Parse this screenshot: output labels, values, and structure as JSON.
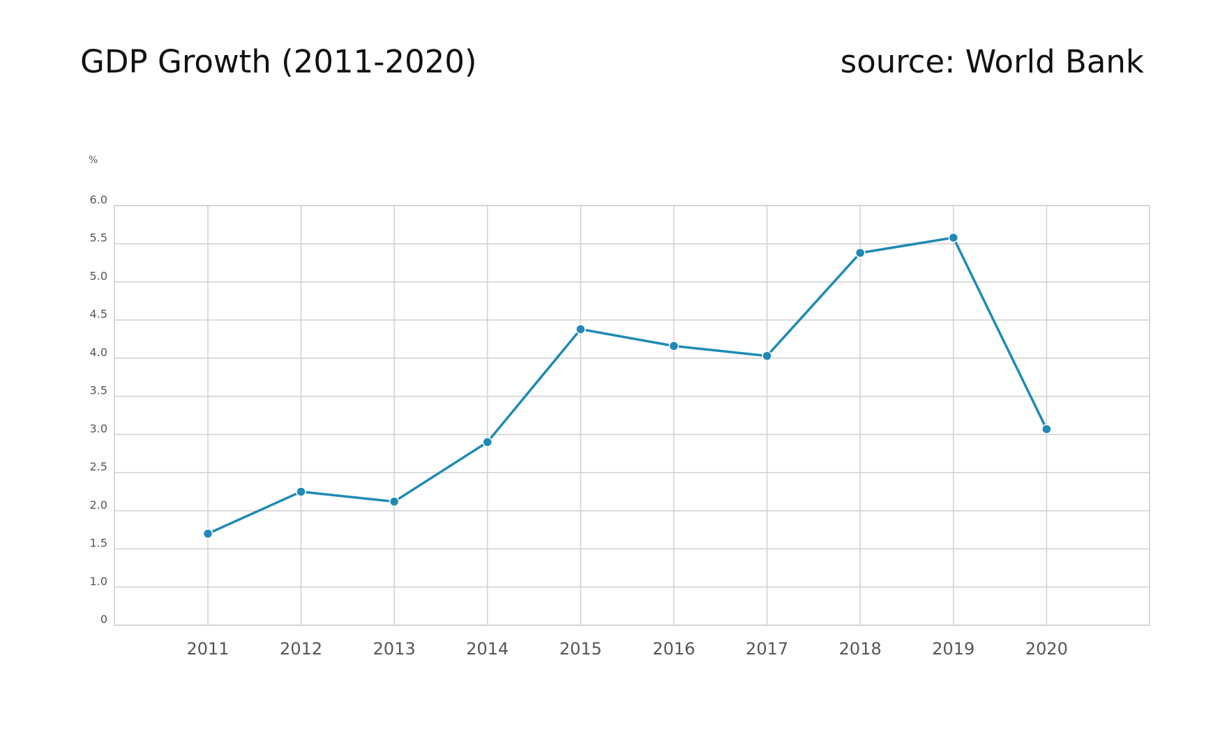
{
  "header": {
    "title": "GDP Growth (2011-2020)",
    "source": "source: World Bank"
  },
  "chart_data": {
    "type": "line",
    "title": "GDP Growth (2011-2020)",
    "subtitle": "source: World Bank",
    "xlabel": "",
    "ylabel": "%",
    "categories": [
      "2011",
      "2012",
      "2013",
      "2014",
      "2015",
      "2016",
      "2017",
      "2018",
      "2019",
      "2020"
    ],
    "y_ticks": [
      "0",
      "1.0",
      "1.5",
      "2.0",
      "2.5",
      "3.0",
      "3.5",
      "4.0",
      "4.5",
      "5.0",
      "5.5",
      "6.0"
    ],
    "ylim": [
      0.5,
      6.0
    ],
    "grid": true,
    "legend": "none",
    "series": [
      {
        "values": [
          1.7,
          2.25,
          2.12,
          2.9,
          4.38,
          4.16,
          4.03,
          5.38,
          5.58,
          3.07
        ],
        "color": "#1f8ab5"
      }
    ]
  }
}
